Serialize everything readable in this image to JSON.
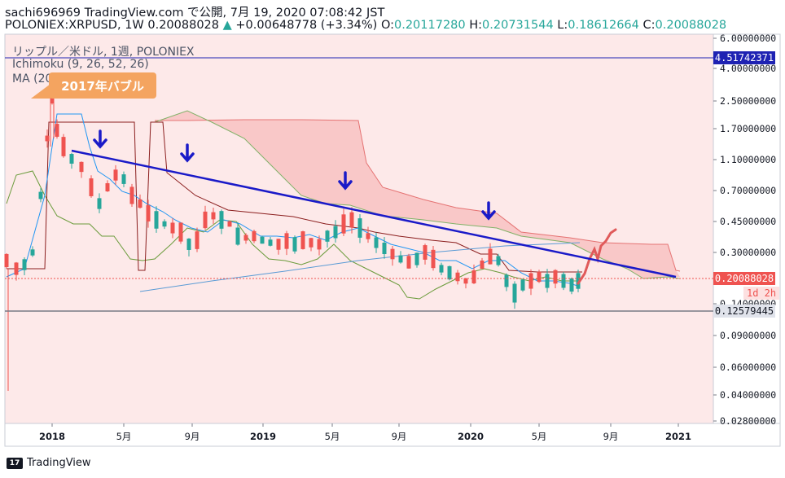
{
  "header": {
    "line1": "sachi696969 TradingView.com で公開, 7月 19, 2020 07:08:42 JST",
    "symbol": "POLONIEX:XRPUSD, 1W",
    "last": "0.20088028",
    "change": "+0.00648778 (+3.34%)",
    "o_label": "O:",
    "o": "0.20117280",
    "h_label": "H:",
    "h": "0.20731544",
    "l_label": "L:",
    "l": "0.18612664",
    "c_label": "C:",
    "c": "0.20088028"
  },
  "legend": {
    "title": "リップル／米ドル, 1週, POLONIEX",
    "ichimoku": "Ichimoku (9, 26, 52, 26)",
    "ma": "MA (200, close, 0)"
  },
  "annotation": {
    "callout": "2017年バブル"
  },
  "price_axis": {
    "ticks": [
      "6.00000000",
      "4.00000000",
      "2.50000000",
      "1.70000000",
      "1.10000000",
      "0.70000000",
      "0.45000000",
      "0.30000000",
      "0.14000000",
      "0.09000000",
      "0.06000000",
      "0.04000000",
      "0.02800000"
    ],
    "tag_top": "4.51742371",
    "tag_price": "0.20088028",
    "tag_countdown": "1d 2h",
    "tag_support": "0.12579445"
  },
  "time_axis": [
    "2018",
    "5月",
    "9月",
    "2019",
    "5月",
    "9月",
    "2020",
    "5月",
    "9月",
    "2021"
  ],
  "colors": {
    "up": "#26a69a",
    "down": "#ef5350",
    "cloud": "#f8c7c7",
    "trend": "#0000cc",
    "tag_top": "#1e22b3",
    "tag_price": "#ef5350",
    "tag_support": "#787b86"
  },
  "footer": {
    "brand": "TradingView"
  }
}
